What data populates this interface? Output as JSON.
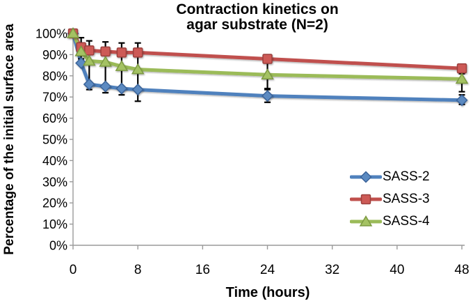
{
  "chart_data": {
    "type": "line",
    "title": "Contraction kinetics on agar substrate (N=2)",
    "title_lines": [
      "Contraction kinetics on",
      "agar substrate (N=2)"
    ],
    "xlabel": "Time (hours)",
    "ylabel": "Percentage of the initial surface area",
    "x": [
      0,
      1,
      2,
      4,
      6,
      8,
      24,
      48
    ],
    "xticks": [
      0,
      8,
      16,
      24,
      32,
      40,
      48
    ],
    "ytick_labels": [
      "0%",
      "10%",
      "20%",
      "30%",
      "40%",
      "50%",
      "60%",
      "70%",
      "80%",
      "90%",
      "100%"
    ],
    "ytick_values": [
      0,
      10,
      20,
      30,
      40,
      50,
      60,
      70,
      80,
      90,
      100
    ],
    "xlim": [
      0,
      48
    ],
    "ylim": [
      0,
      100
    ],
    "grid": false,
    "legend_position": "inside lower right",
    "axis_color": "#9a9a9a",
    "error_bar_color": "#000000",
    "series": [
      {
        "name": "SASS-2",
        "marker": "diamond",
        "color": "#4f81bd",
        "marker_fill": "#5b8ac1",
        "marker_stroke": "#3a6399",
        "values": [
          100,
          86,
          76,
          75,
          74,
          73.5,
          70.5,
          68.5
        ]
      },
      {
        "name": "SASS-3",
        "marker": "square",
        "color": "#c0504d",
        "marker_fill": "#cd5a56",
        "marker_stroke": "#9c403d",
        "values": [
          100,
          93.5,
          92,
          91.5,
          91,
          91,
          88,
          83.5
        ]
      },
      {
        "name": "SASS-4",
        "marker": "triangle",
        "color": "#9bbb59",
        "marker_fill": "#a4c263",
        "marker_stroke": "#7d9a42",
        "values": [
          100,
          91.5,
          87,
          86.5,
          84.5,
          83,
          80.5,
          78.5
        ]
      }
    ],
    "error_bars": [
      {
        "t": 1,
        "top": 98,
        "bottom": 88
      },
      {
        "t": 2,
        "top": 96.5,
        "bottom": 73.5
      },
      {
        "t": 4,
        "top": 96,
        "bottom": 72
      },
      {
        "t": 6,
        "top": 95.5,
        "bottom": 71
      },
      {
        "t": 8,
        "top": 95.5,
        "bottom": 68
      },
      {
        "t": 24,
        "top": 88,
        "bottom": 74
      },
      {
        "t": 24,
        "top": 73.5,
        "bottom": 67.5
      },
      {
        "t": 48,
        "top": 83.5,
        "bottom": 81
      },
      {
        "t": 48,
        "top": 78.5,
        "bottom": 72.5
      },
      {
        "t": 48,
        "top": 71,
        "bottom": 66.5
      }
    ]
  }
}
